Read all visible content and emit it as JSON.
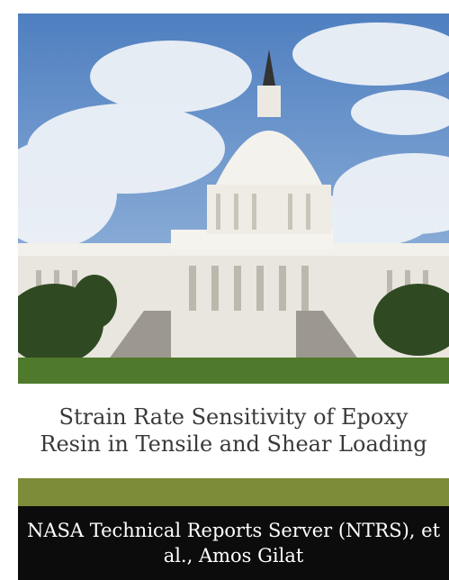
{
  "cover": {
    "title": "Strain Rate Sensitivity of Epoxy Resin in Tensile and Shear Loading",
    "author": "NASA Technical Reports Server (NTRS), et al., Amos Gilat"
  }
}
